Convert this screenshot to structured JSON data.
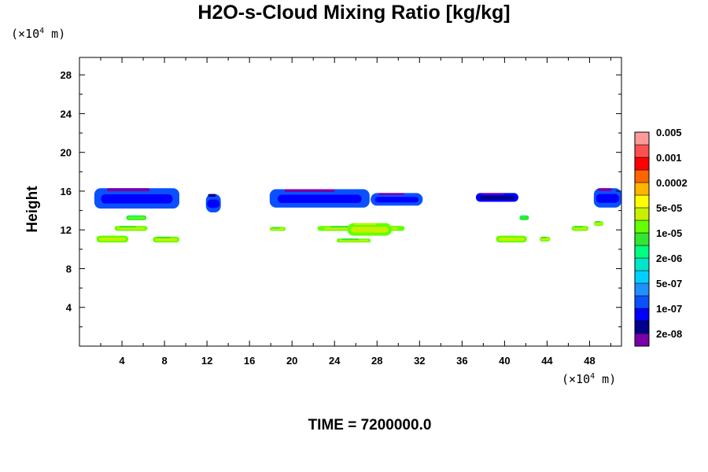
{
  "chart_data": {
    "type": "heatmap",
    "title": "H2O-s-Cloud Mixing Ratio [kg/kg]",
    "ylabel": "Height",
    "x_unit": {
      "prefix": "(×10",
      "exp": "4",
      "suffix": " m)"
    },
    "y_unit": {
      "prefix": "(×10",
      "exp": "4",
      "suffix": " m)"
    },
    "xlim": [
      0,
      51
    ],
    "ylim": [
      0,
      29.8
    ],
    "x_ticks": [
      4,
      8,
      12,
      16,
      20,
      24,
      28,
      32,
      36,
      40,
      44,
      48
    ],
    "y_ticks": [
      4,
      8,
      12,
      16,
      20,
      24,
      28
    ],
    "time_label": "TIME = 7200000.0",
    "colorbar": {
      "colors": [
        "#7a00a8",
        "#00008b",
        "#0000ff",
        "#0a50ff",
        "#1e90ff",
        "#00d0ff",
        "#00e6c8",
        "#00ff80",
        "#32e632",
        "#64ff00",
        "#c8f000",
        "#ffff00",
        "#ffb400",
        "#ff6400",
        "#ff0000",
        "#ff5050",
        "#ff9a9a"
      ],
      "labels": [
        "2e-08",
        "1e-07",
        "5e-07",
        "2e-06",
        "1e-05",
        "5e-05",
        "0.0002",
        "0.001",
        "0.005"
      ]
    },
    "cloud_regions": [
      {
        "x0": 1.4,
        "x1": 9.4,
        "y0": 14.2,
        "y1": 16.3,
        "level": 3,
        "core": 2,
        "top": 0
      },
      {
        "x0": 11.9,
        "x1": 13.3,
        "y0": 13.8,
        "y1": 15.7,
        "level": 3,
        "core": 2,
        "top": 1
      },
      {
        "x0": 17.9,
        "x1": 27.3,
        "y0": 14.3,
        "y1": 16.2,
        "level": 3,
        "core": 2,
        "top": 0
      },
      {
        "x0": 27.4,
        "x1": 32.3,
        "y0": 14.5,
        "y1": 15.8,
        "level": 3,
        "core": 2,
        "top": 0
      },
      {
        "x0": 37.3,
        "x1": 41.3,
        "y0": 14.9,
        "y1": 15.8,
        "level": 2,
        "core": 1,
        "top": 0
      },
      {
        "x0": 48.4,
        "x1": 51.0,
        "y0": 14.3,
        "y1": 16.3,
        "level": 3,
        "core": 2,
        "top": 0
      },
      {
        "x0": 1.6,
        "x1": 4.6,
        "y0": 10.7,
        "y1": 11.4,
        "level": 9,
        "core": 10,
        "top": 9
      },
      {
        "x0": 3.3,
        "x1": 6.4,
        "y0": 11.9,
        "y1": 12.4,
        "level": 9,
        "core": 10,
        "top": 8
      },
      {
        "x0": 4.4,
        "x1": 6.3,
        "y0": 13.0,
        "y1": 13.5,
        "level": 8,
        "core": 9,
        "top": 7
      },
      {
        "x0": 6.9,
        "x1": 9.4,
        "y0": 10.7,
        "y1": 11.3,
        "level": 9,
        "core": 10,
        "top": 8
      },
      {
        "x0": 17.9,
        "x1": 19.4,
        "y0": 11.9,
        "y1": 12.3,
        "level": 9,
        "core": 10,
        "top": 8
      },
      {
        "x0": 22.4,
        "x1": 30.6,
        "y0": 11.9,
        "y1": 12.4,
        "level": 9,
        "core": 10,
        "top": 8
      },
      {
        "x0": 25.2,
        "x1": 29.4,
        "y0": 11.4,
        "y1": 12.7,
        "level": 9,
        "core": 10,
        "top": 10
      },
      {
        "x0": 24.2,
        "x1": 27.4,
        "y0": 10.7,
        "y1": 11.1,
        "level": 9,
        "core": 10,
        "top": 8
      },
      {
        "x0": 39.2,
        "x1": 42.1,
        "y0": 10.7,
        "y1": 11.4,
        "level": 9,
        "core": 10,
        "top": 9
      },
      {
        "x0": 41.4,
        "x1": 42.3,
        "y0": 13.0,
        "y1": 13.5,
        "level": 8,
        "core": 8,
        "top": 7
      },
      {
        "x0": 43.3,
        "x1": 44.3,
        "y0": 10.8,
        "y1": 11.3,
        "level": 9,
        "core": 10,
        "top": 8
      },
      {
        "x0": 46.3,
        "x1": 47.9,
        "y0": 11.9,
        "y1": 12.4,
        "level": 9,
        "core": 10,
        "top": 8
      },
      {
        "x0": 48.4,
        "x1": 49.3,
        "y0": 12.4,
        "y1": 12.9,
        "level": 9,
        "core": 10,
        "top": 8
      }
    ]
  }
}
